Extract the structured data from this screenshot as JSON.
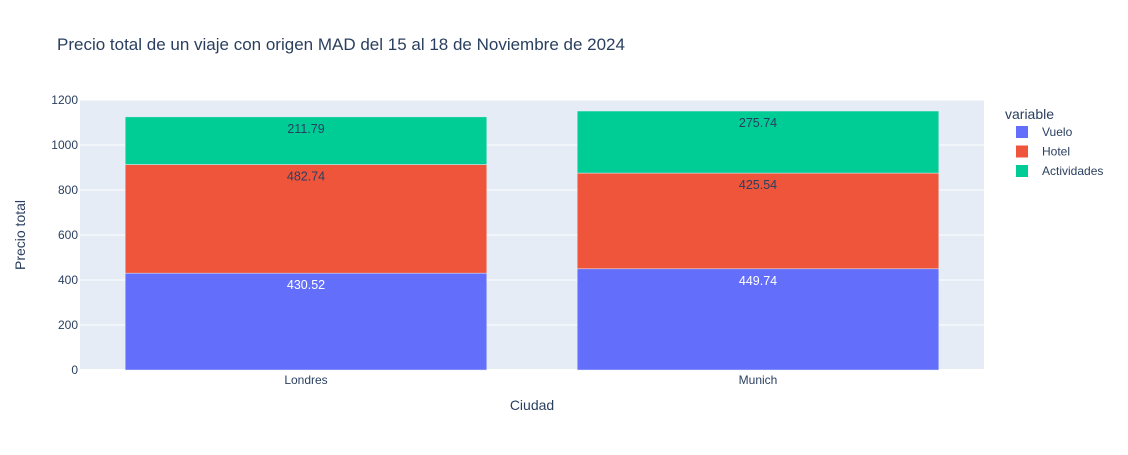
{
  "chart_data": {
    "type": "bar",
    "stacked": true,
    "title": "Precio total de un viaje con origen MAD del 15 al 18 de Noviembre de 2024",
    "xlabel": "Ciudad",
    "ylabel": "Precio total",
    "categories": [
      "Londres",
      "Munich"
    ],
    "ylim": [
      0,
      1200
    ],
    "yticks": [
      "0",
      "200",
      "400",
      "600",
      "800",
      "1000",
      "1200"
    ],
    "grid": true,
    "legend_title": "variable",
    "legend_position": "right",
    "series": [
      {
        "name": "Vuelo",
        "values": [
          430.52,
          449.74
        ],
        "labels": [
          "430.52",
          "449.74"
        ],
        "color": "#636efa",
        "label_color": "#ffffff"
      },
      {
        "name": "Hotel",
        "values": [
          482.74,
          425.54
        ],
        "labels": [
          "482.74",
          "425.54"
        ],
        "color": "#ef553b",
        "label_color": "#2a3f5f"
      },
      {
        "name": "Actividades",
        "values": [
          211.79,
          275.74
        ],
        "labels": [
          "211.79",
          "275.74"
        ],
        "color": "#00cc96",
        "label_color": "#2a3f5f"
      }
    ],
    "plot_background": "#e5ecf6",
    "text_color": "#2a3f5f"
  }
}
